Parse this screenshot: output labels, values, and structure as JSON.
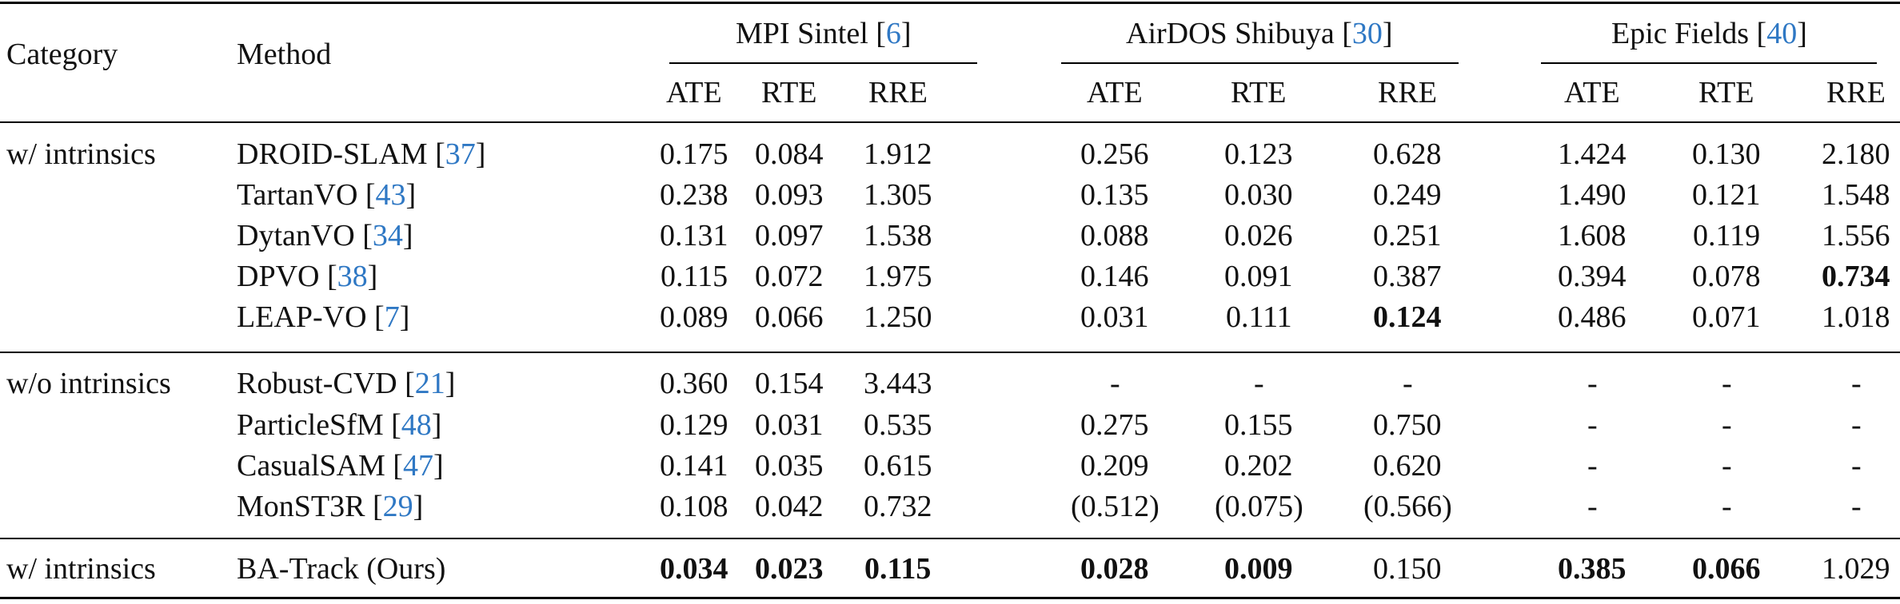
{
  "headers": {
    "category": "Category",
    "method": "Method",
    "groups": [
      {
        "name": "MPI Sintel",
        "ref": "6"
      },
      {
        "name": "AirDOS Shibuya",
        "ref": "30"
      },
      {
        "name": "Epic Fields",
        "ref": "40"
      }
    ],
    "metrics": [
      "ATE",
      "RTE",
      "RRE",
      "ATE",
      "RTE",
      "RRE",
      "ATE",
      "RTE",
      "RRE"
    ]
  },
  "rows": [
    {
      "category": "w/ intrinsics",
      "method": "DROID-SLAM",
      "ref": "37",
      "values": [
        "0.175",
        "0.084",
        "1.912",
        "0.256",
        "0.123",
        "0.628",
        "1.424",
        "0.130",
        "2.180"
      ],
      "bold": []
    },
    {
      "category": "",
      "method": "TartanVO",
      "ref": "43",
      "values": [
        "0.238",
        "0.093",
        "1.305",
        "0.135",
        "0.030",
        "0.249",
        "1.490",
        "0.121",
        "1.548"
      ],
      "bold": []
    },
    {
      "category": "",
      "method": "DytanVO",
      "ref": "34",
      "values": [
        "0.131",
        "0.097",
        "1.538",
        "0.088",
        "0.026",
        "0.251",
        "1.608",
        "0.119",
        "1.556"
      ],
      "bold": []
    },
    {
      "category": "",
      "method": "DPVO",
      "ref": "38",
      "values": [
        "0.115",
        "0.072",
        "1.975",
        "0.146",
        "0.091",
        "0.387",
        "0.394",
        "0.078",
        "0.734"
      ],
      "bold": [
        8
      ]
    },
    {
      "category": "",
      "method": "LEAP-VO",
      "ref": "7",
      "values": [
        "0.089",
        "0.066",
        "1.250",
        "0.031",
        "0.111",
        "0.124",
        "0.486",
        "0.071",
        "1.018"
      ],
      "bold": [
        5
      ]
    },
    {
      "category": "w/o intrinsics",
      "method": "Robust-CVD ",
      "ref": "21",
      "values": [
        "0.360",
        "0.154",
        "3.443",
        "-",
        "-",
        "-",
        "-",
        "-",
        "-"
      ],
      "bold": []
    },
    {
      "category": "",
      "method": "ParticleSfM ",
      "ref": "48",
      "values": [
        "0.129",
        "0.031",
        "0.535",
        "0.275",
        "0.155",
        "0.750",
        "-",
        "-",
        "-"
      ],
      "bold": []
    },
    {
      "category": "",
      "method": "CasualSAM ",
      "ref": "47",
      "values": [
        "0.141",
        "0.035",
        "0.615",
        "0.209",
        "0.202",
        "0.620",
        "-",
        "-",
        "-"
      ],
      "bold": []
    },
    {
      "category": "",
      "method": "MonST3R ",
      "ref": "29",
      "values": [
        "0.108",
        "0.042",
        "0.732",
        "(0.512)",
        "(0.075)",
        "(0.566)",
        "-",
        "-",
        "-"
      ],
      "bold": []
    },
    {
      "category": "w/ intrinsics",
      "method": "BA-Track (Ours)",
      "ref": "",
      "values": [
        "0.034",
        "0.023",
        "0.115",
        "0.028",
        "0.009",
        "0.150",
        "0.385",
        "0.066",
        "1.029"
      ],
      "bold": [
        0,
        1,
        2,
        3,
        4,
        6,
        7
      ]
    }
  ]
}
